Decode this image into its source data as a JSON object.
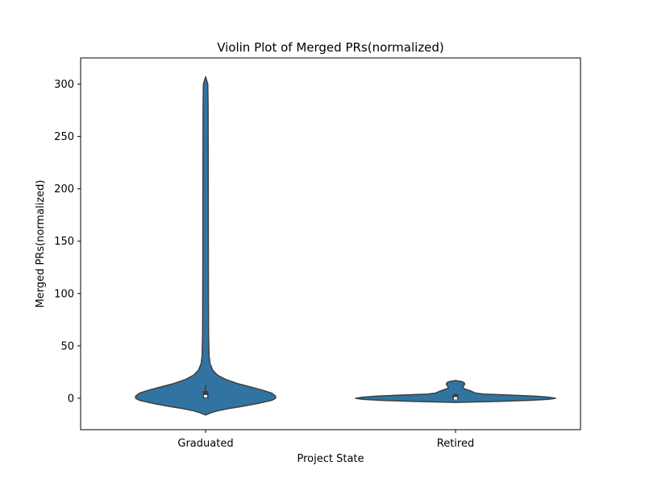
{
  "chart_data": {
    "type": "violin",
    "title": "Violin Plot of Merged PRs(normalized)",
    "xlabel": "Project State",
    "ylabel": "Merged PRs(normalized)",
    "categories": [
      "Graduated",
      "Retired"
    ],
    "ylim": [
      -30,
      325
    ],
    "yticks": [
      0,
      50,
      100,
      150,
      200,
      250,
      300
    ],
    "grid": false,
    "color": "#3274a1",
    "violins": [
      {
        "category": "Graduated",
        "min": -16,
        "max": 307,
        "q1": 0,
        "median": 2,
        "q3": 7,
        "whisker_low": 0,
        "whisker_high": 13,
        "density": [
          [
            -16,
            0.0
          ],
          [
            -14,
            0.05
          ],
          [
            -12,
            0.12
          ],
          [
            -10,
            0.22
          ],
          [
            -8,
            0.35
          ],
          [
            -5,
            0.52
          ],
          [
            -2,
            0.66
          ],
          [
            0,
            0.7
          ],
          [
            2,
            0.7
          ],
          [
            5,
            0.66
          ],
          [
            8,
            0.56
          ],
          [
            11,
            0.44
          ],
          [
            14,
            0.32
          ],
          [
            18,
            0.2
          ],
          [
            22,
            0.12
          ],
          [
            27,
            0.07
          ],
          [
            33,
            0.045
          ],
          [
            40,
            0.035
          ],
          [
            60,
            0.03
          ],
          [
            120,
            0.028
          ],
          [
            200,
            0.027
          ],
          [
            280,
            0.025
          ],
          [
            300,
            0.022
          ],
          [
            307,
            0.0
          ]
        ]
      },
      {
        "category": "Retired",
        "min": -4,
        "max": 17,
        "q1": -1,
        "median": 0,
        "q3": 4,
        "whisker_low": -1,
        "whisker_high": 4,
        "density": [
          [
            -4,
            0.0
          ],
          [
            -3,
            0.42
          ],
          [
            -2,
            0.75
          ],
          [
            -1,
            0.93
          ],
          [
            0,
            1.0
          ],
          [
            1,
            0.93
          ],
          [
            2,
            0.8
          ],
          [
            3,
            0.55
          ],
          [
            4,
            0.28
          ],
          [
            5,
            0.2
          ],
          [
            7,
            0.15
          ],
          [
            9,
            0.09
          ],
          [
            10,
            0.07
          ],
          [
            11,
            0.075
          ],
          [
            13,
            0.09
          ],
          [
            14,
            0.09
          ],
          [
            15,
            0.085
          ],
          [
            16,
            0.06
          ],
          [
            17,
            0.0
          ]
        ]
      }
    ]
  }
}
